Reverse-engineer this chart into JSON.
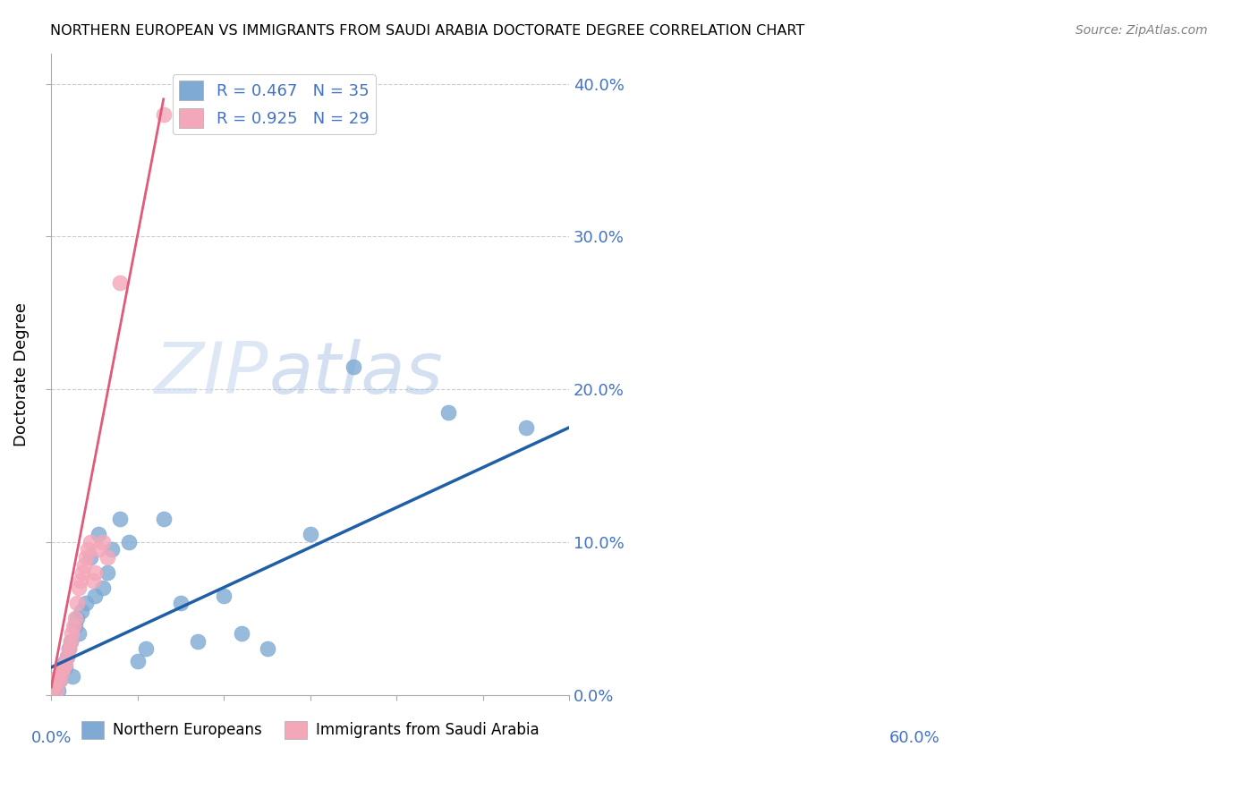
{
  "title": "NORTHERN EUROPEAN VS IMMIGRANTS FROM SAUDI ARABIA DOCTORATE DEGREE CORRELATION CHART",
  "source": "Source: ZipAtlas.com",
  "ylabel": "Doctorate Degree",
  "ytick_vals": [
    0.0,
    0.1,
    0.2,
    0.3,
    0.4
  ],
  "xtick_vals": [
    0.0,
    0.1,
    0.2,
    0.3,
    0.4,
    0.5,
    0.6
  ],
  "xlim": [
    0.0,
    0.6
  ],
  "ylim": [
    0.0,
    0.42
  ],
  "legend_blue_label": "R = 0.467   N = 35",
  "legend_pink_label": "R = 0.925   N = 29",
  "legend_bottom_blue": "Northern Europeans",
  "legend_bottom_pink": "Immigrants from Saudi Arabia",
  "blue_color": "#7eaad4",
  "pink_color": "#f4a7b9",
  "blue_line_color": "#1f5fa6",
  "pink_line_color": "#e05a7a",
  "watermark_zip": "ZIP",
  "watermark_atlas": "atlas",
  "blue_scatter_x": [
    0.005,
    0.008,
    0.01,
    0.012,
    0.014,
    0.016,
    0.018,
    0.02,
    0.022,
    0.025,
    0.028,
    0.03,
    0.032,
    0.035,
    0.04,
    0.045,
    0.05,
    0.055,
    0.06,
    0.065,
    0.07,
    0.08,
    0.09,
    0.1,
    0.11,
    0.13,
    0.15,
    0.17,
    0.2,
    0.22,
    0.25,
    0.3,
    0.35,
    0.46,
    0.55
  ],
  "blue_scatter_y": [
    0.005,
    0.003,
    0.01,
    0.015,
    0.02,
    0.018,
    0.025,
    0.03,
    0.035,
    0.012,
    0.045,
    0.05,
    0.04,
    0.055,
    0.06,
    0.09,
    0.065,
    0.105,
    0.07,
    0.08,
    0.095,
    0.115,
    0.1,
    0.022,
    0.03,
    0.115,
    0.06,
    0.035,
    0.065,
    0.04,
    0.03,
    0.105,
    0.215,
    0.185,
    0.175
  ],
  "pink_scatter_x": [
    0.002,
    0.004,
    0.006,
    0.008,
    0.01,
    0.012,
    0.014,
    0.016,
    0.018,
    0.02,
    0.022,
    0.024,
    0.026,
    0.028,
    0.03,
    0.032,
    0.034,
    0.036,
    0.038,
    0.04,
    0.042,
    0.045,
    0.048,
    0.05,
    0.055,
    0.06,
    0.065,
    0.08,
    0.13
  ],
  "pink_scatter_y": [
    0.005,
    0.008,
    0.003,
    0.012,
    0.01,
    0.015,
    0.018,
    0.02,
    0.025,
    0.03,
    0.035,
    0.04,
    0.045,
    0.05,
    0.06,
    0.07,
    0.075,
    0.08,
    0.085,
    0.09,
    0.095,
    0.1,
    0.075,
    0.08,
    0.095,
    0.1,
    0.09,
    0.27,
    0.38
  ],
  "blue_trend_x": [
    0.0,
    0.6
  ],
  "blue_trend_y": [
    0.018,
    0.175
  ],
  "pink_trend_x": [
    0.0,
    0.13
  ],
  "pink_trend_y": [
    0.005,
    0.39
  ]
}
